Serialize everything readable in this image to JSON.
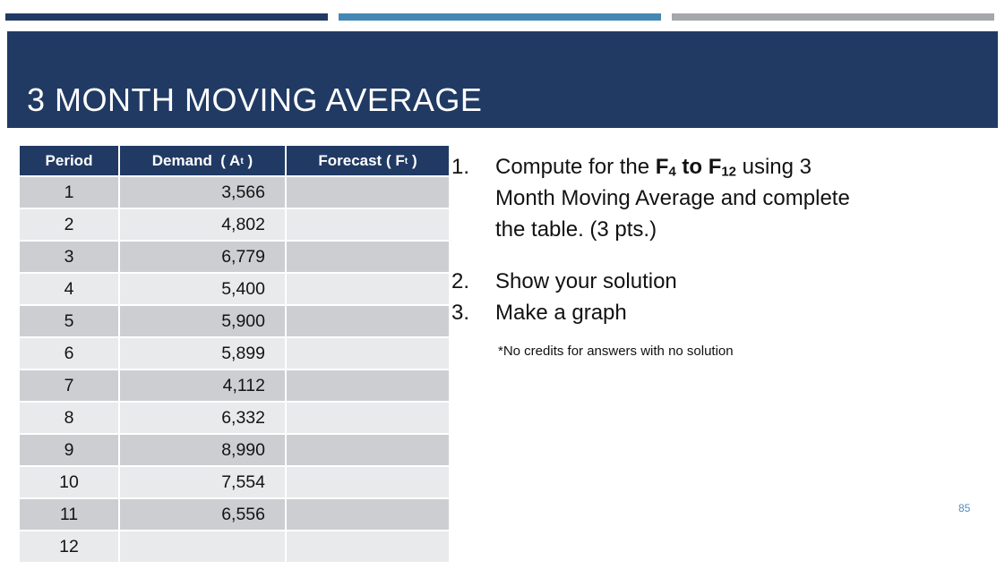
{
  "slide": {
    "title": "3 MONTH MOVING AVERAGE",
    "page_number": "85"
  },
  "colors": {
    "navy": "#203a63",
    "accent_blue_bar": "#4587b4",
    "accent_gray_bar": "#a4a7ab",
    "table_row_odd": "#cdced2",
    "table_row_even": "#e9eaec",
    "page_number_blue": "#4e8cc2"
  },
  "table": {
    "headers": {
      "period": "Period",
      "demand_pre": "Demand  ( A",
      "demand_sub": "t",
      "demand_post": " )",
      "forecast_pre": "Forecast ( F",
      "forecast_sub": "t",
      "forecast_post": " )"
    },
    "rows": [
      {
        "period": "1",
        "demand": "3,566",
        "forecast": ""
      },
      {
        "period": "2",
        "demand": "4,802",
        "forecast": ""
      },
      {
        "period": "3",
        "demand": "6,779",
        "forecast": ""
      },
      {
        "period": "4",
        "demand": "5,400",
        "forecast": ""
      },
      {
        "period": "5",
        "demand": "5,900",
        "forecast": ""
      },
      {
        "period": "6",
        "demand": "5,899",
        "forecast": ""
      },
      {
        "period": "7",
        "demand": "4,112",
        "forecast": ""
      },
      {
        "period": "8",
        "demand": "6,332",
        "forecast": ""
      },
      {
        "period": "9",
        "demand": "8,990",
        "forecast": ""
      },
      {
        "period": "10",
        "demand": "7,554",
        "forecast": ""
      },
      {
        "period": "11",
        "demand": "6,556",
        "forecast": ""
      },
      {
        "period": "12",
        "demand": "",
        "forecast": ""
      }
    ]
  },
  "instructions": {
    "item1": {
      "number": "1.",
      "l1_pre": "Compute for the ",
      "l1_bold_f": "F",
      "l1_sub1": "4",
      "l1_bold_mid": " to F",
      "l1_sub2": "12",
      "l1_post": " using 3",
      "l2": "Month Moving Average and complete",
      "l3": "the table. (3 pts.)"
    },
    "item2": {
      "number": "2.",
      "text": "Show your solution"
    },
    "item3": {
      "number": "3.",
      "text": "Make a graph"
    },
    "note": "*No credits for answers with no solution"
  }
}
